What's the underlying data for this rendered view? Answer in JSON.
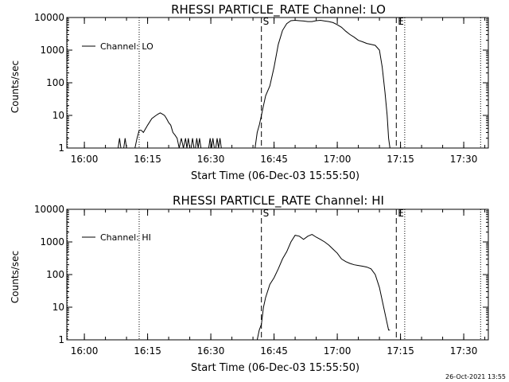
{
  "timestamp": "26-Oct-2021 13:55",
  "colors": {
    "background": "#ffffff",
    "foreground": "#000000"
  },
  "chart_data": [
    {
      "type": "line",
      "title": "RHESSI PARTICLE_RATE Channel: LO",
      "xlabel": "Start Time (06-Dec-03 15:55:50)",
      "ylabel": "Counts/sec",
      "y_scale": "log",
      "xlim": [
        "15:55:50",
        "17:35:50"
      ],
      "ylim": [
        1,
        10000
      ],
      "x_ticks": [
        "16:00",
        "16:15",
        "16:30",
        "16:45",
        "17:00",
        "17:15",
        "17:30"
      ],
      "y_ticks": [
        "1",
        "10",
        "100",
        "1000",
        "10000"
      ],
      "legend": {
        "position": "top-left",
        "label": "Channel: LO"
      },
      "markers": [
        {
          "label": "S",
          "time": "16:42",
          "style": "dashed"
        },
        {
          "label": "E",
          "time": "17:14",
          "style": "dashed"
        }
      ],
      "vertical_lines_dotted": [
        "15:56",
        "16:13",
        "17:16",
        "17:34"
      ],
      "series": [
        {
          "name": "Channel: LO",
          "x": [
            "16:08:00",
            "16:08:20",
            "16:08:40",
            "16:09:20",
            "16:09:40",
            "16:10:00",
            "16:12:00",
            "16:12:30",
            "16:13:00",
            "16:13:30",
            "16:14:00",
            "16:15:00",
            "16:16:00",
            "16:17:00",
            "16:17:30",
            "16:18:00",
            "16:18:30",
            "16:19:00",
            "16:19:30",
            "16:20:00",
            "16:20:30",
            "16:21:00",
            "16:21:30",
            "16:22:00",
            "16:22:30",
            "16:23:00",
            "16:23:30",
            "16:24:00",
            "16:24:20",
            "16:24:40",
            "16:25:00",
            "16:25:20",
            "16:25:40",
            "16:26:00",
            "16:26:20",
            "16:26:40",
            "16:27:00",
            "16:27:20",
            "16:27:40",
            "16:28:00",
            "16:29:30",
            "16:29:50",
            "16:30:10",
            "16:30:30",
            "16:30:50",
            "16:31:10",
            "16:31:30",
            "16:31:50",
            "16:32:10",
            "16:32:30",
            "16:32:50",
            "16:40:30",
            "16:41:00",
            "16:41:30",
            "16:42:00",
            "16:42:30",
            "16:43:00",
            "16:44:00",
            "16:45:00",
            "16:46:00",
            "16:47:00",
            "16:48:00",
            "16:49:00",
            "16:50:00",
            "16:51:00",
            "16:52:00",
            "16:53:00",
            "16:54:00",
            "16:55:00",
            "16:56:00",
            "16:57:00",
            "16:58:00",
            "16:59:00",
            "17:00:00",
            "17:01:00",
            "17:02:00",
            "17:03:00",
            "17:04:00",
            "17:05:00",
            "17:06:00",
            "17:07:00",
            "17:08:00",
            "17:09:00",
            "17:10:00",
            "17:10:40",
            "17:11:20",
            "17:11:50",
            "17:12:10",
            "17:12:30"
          ],
          "values": [
            1,
            2,
            1,
            1,
            2,
            1,
            1,
            2,
            3.5,
            3.5,
            3,
            5,
            8,
            10,
            11,
            12,
            11,
            10,
            8,
            6,
            5,
            3,
            2.5,
            2,
            1,
            2,
            1,
            2,
            1,
            2,
            1,
            1,
            2,
            1,
            1,
            2,
            1,
            2,
            1,
            1,
            1,
            2,
            1,
            2,
            1,
            1,
            2,
            1,
            2,
            1,
            1,
            1,
            3,
            5,
            10,
            20,
            40,
            80,
            300,
            1500,
            4000,
            6500,
            8000,
            8200,
            8000,
            7800,
            7500,
            7500,
            8000,
            8200,
            7800,
            7500,
            7000,
            6000,
            5000,
            3800,
            3000,
            2500,
            2000,
            1800,
            1600,
            1500,
            1400,
            1000,
            300,
            50,
            10,
            2,
            1
          ]
        }
      ]
    },
    {
      "type": "line",
      "title": "RHESSI PARTICLE_RATE Channel: HI",
      "xlabel": "Start Time (06-Dec-03 15:55:50)",
      "ylabel": "Counts/sec",
      "y_scale": "log",
      "xlim": [
        "15:55:50",
        "17:35:50"
      ],
      "ylim": [
        1,
        10000
      ],
      "x_ticks": [
        "16:00",
        "16:15",
        "16:30",
        "16:45",
        "17:00",
        "17:15",
        "17:30"
      ],
      "y_ticks": [
        "1",
        "10",
        "100",
        "1000",
        "10000"
      ],
      "legend": {
        "position": "top-left",
        "label": "Channel: HI"
      },
      "markers": [
        {
          "label": "S",
          "time": "16:42",
          "style": "dashed"
        },
        {
          "label": "E",
          "time": "17:14",
          "style": "dashed"
        }
      ],
      "vertical_lines_dotted": [
        "15:56",
        "16:13",
        "17:16",
        "17:34"
      ],
      "series": [
        {
          "name": "Channel: HI",
          "x": [
            "16:41:00",
            "16:41:30",
            "16:42:00",
            "16:42:30",
            "16:43:00",
            "16:44:00",
            "16:45:00",
            "16:46:00",
            "16:47:00",
            "16:48:00",
            "16:49:00",
            "16:50:00",
            "16:51:00",
            "16:52:00",
            "16:53:00",
            "16:54:00",
            "16:55:00",
            "16:56:00",
            "16:57:00",
            "16:58:00",
            "16:59:00",
            "17:00:00",
            "17:01:00",
            "17:02:00",
            "17:03:00",
            "17:04:00",
            "17:05:00",
            "17:06:00",
            "17:07:00",
            "17:08:00",
            "17:09:00",
            "17:10:00",
            "17:11:00",
            "17:11:40",
            "17:12:10",
            "17:12:30"
          ],
          "values": [
            1,
            2,
            3,
            10,
            20,
            50,
            80,
            150,
            300,
            500,
            1000,
            1600,
            1500,
            1200,
            1500,
            1700,
            1400,
            1200,
            1000,
            800,
            600,
            450,
            300,
            250,
            220,
            200,
            190,
            180,
            170,
            150,
            100,
            40,
            10,
            4,
            2,
            2
          ]
        }
      ]
    }
  ]
}
